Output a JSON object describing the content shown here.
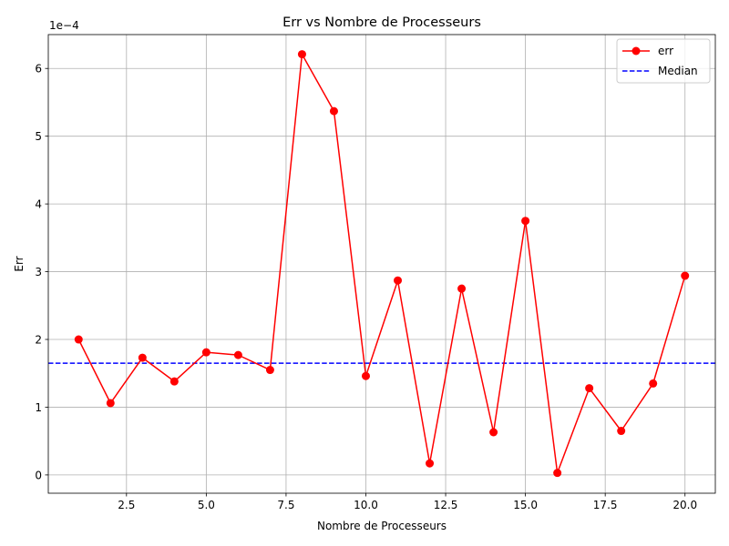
{
  "chart_data": {
    "type": "line",
    "title": "Err vs Nombre de Processeurs",
    "xlabel": "Nombre de Processeurs",
    "ylabel": "Err",
    "y_offset_label": "1e−4",
    "y_scale_factor": 0.0001,
    "xlim": [
      0.05,
      20.95
    ],
    "ylim": [
      -0.27,
      6.5
    ],
    "x_ticks": [
      2.5,
      5.0,
      7.5,
      10.0,
      12.5,
      15.0,
      17.5,
      20.0
    ],
    "x_tick_labels": [
      "2.5",
      "5.0",
      "7.5",
      "10.0",
      "12.5",
      "15.0",
      "17.5",
      "20.0"
    ],
    "y_ticks": [
      0,
      1,
      2,
      3,
      4,
      5,
      6
    ],
    "y_tick_labels": [
      "0",
      "1",
      "2",
      "3",
      "4",
      "5",
      "6"
    ],
    "grid": true,
    "legend_position": "top-right",
    "series": [
      {
        "name": "err",
        "style": "solid-line-circle-markers",
        "color": "#ff0000",
        "x": [
          1,
          2,
          3,
          4,
          5,
          6,
          7,
          8,
          9,
          10,
          11,
          12,
          13,
          14,
          15,
          16,
          17,
          18,
          19,
          20
        ],
        "y": [
          2.0,
          1.06,
          1.73,
          1.38,
          1.81,
          1.77,
          1.55,
          6.21,
          5.37,
          1.46,
          2.87,
          0.17,
          2.75,
          0.63,
          3.75,
          0.03,
          1.28,
          0.65,
          1.35,
          2.94
        ]
      },
      {
        "name": "Median",
        "style": "dashed-horizontal-line",
        "color": "#0000ff",
        "value": 1.65
      }
    ]
  }
}
